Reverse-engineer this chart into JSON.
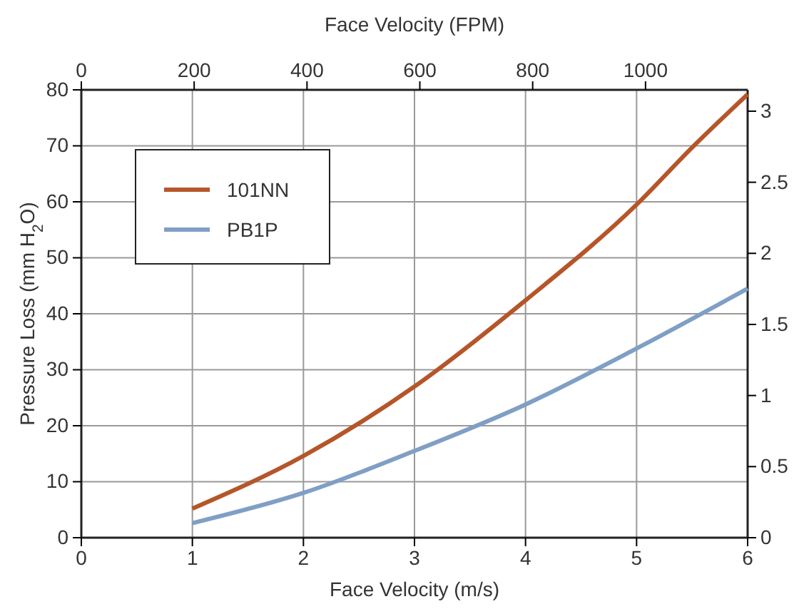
{
  "chart_data": {
    "type": "line",
    "xlabel": "Face Velocity (m/s)",
    "ylabel": "Pressure Loss (mm H$_{2}$O)",
    "x2label": "Face Velocity (FPM)",
    "xlim": [
      0,
      6
    ],
    "xticks": [
      0,
      1,
      2,
      3,
      4,
      5,
      6
    ],
    "x2lim": [
      0,
      1181
    ],
    "x2ticks": [
      0,
      200,
      400,
      600,
      800,
      1000
    ],
    "ylim": [
      0,
      80
    ],
    "yticks": [
      0,
      10,
      20,
      30,
      40,
      50,
      60,
      70,
      80
    ],
    "y2lim": [
      0,
      3.15
    ],
    "y2ticks": [
      0,
      0.5,
      1,
      1.5,
      2,
      2.5,
      3
    ],
    "grid": true,
    "legend": "top left",
    "marker": "none",
    "line_style": "solid",
    "series": [
      {
        "name": "101NN",
        "color": "#b5562a",
        "x": [
          1,
          2,
          3,
          4,
          5,
          5.5,
          6
        ],
        "values": [
          5.2,
          14.6,
          27,
          42.4,
          59.5,
          69.7,
          79.2
        ]
      },
      {
        "name": "PB1P",
        "color": "#7f9fc4",
        "x": [
          1,
          2,
          3,
          4,
          5,
          6
        ],
        "values": [
          2.6,
          8.0,
          15.5,
          23.8,
          33.8,
          44.5
        ]
      }
    ]
  }
}
